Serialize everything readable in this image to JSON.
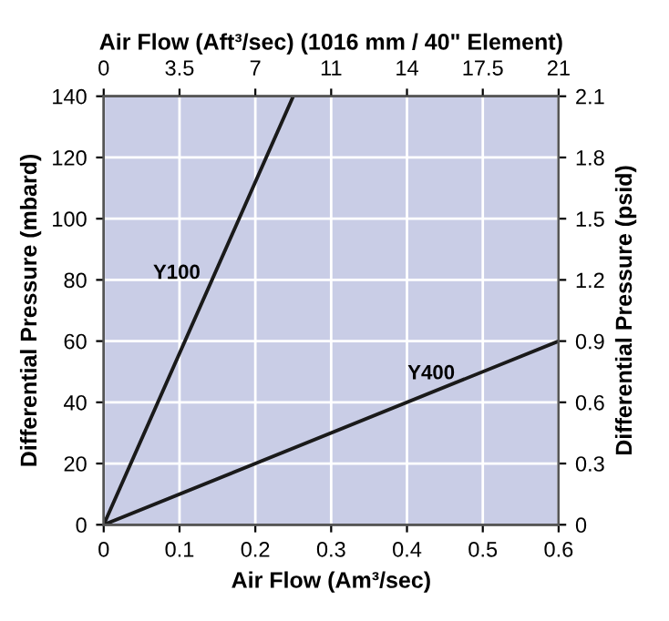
{
  "chart_data": {
    "type": "line",
    "xlabel": "Air Flow (Am³/sec)",
    "ylabel": "Differential Pressure (mbard)",
    "y2label": "Differential Pressure (psid)",
    "x2label": "Air Flow (Aft³/sec) (1016 mm / 40\" Element)",
    "series": [
      {
        "name": "Y100",
        "color": "#1a1a1a",
        "x": [
          0,
          0.25
        ],
        "values": [
          0,
          140
        ]
      },
      {
        "name": "Y400",
        "color": "#1a1a1a",
        "x": [
          0,
          0.6
        ],
        "values": [
          0,
          60
        ]
      }
    ],
    "xlim": [
      0,
      0.6
    ],
    "xticks": [
      0,
      0.1,
      0.2,
      0.3,
      0.4,
      0.5,
      0.6
    ],
    "ylim": [
      0,
      140
    ],
    "yticks": [
      0,
      20,
      40,
      60,
      80,
      100,
      120,
      140
    ],
    "y2lim": [
      0,
      2.1
    ],
    "y2ticks": [
      0,
      0.3,
      0.6,
      0.9,
      1.2,
      1.5,
      1.8,
      2.1
    ],
    "x2lim": [
      0,
      21
    ],
    "x2ticks": [
      0,
      3.5,
      7,
      {
        "value": 10.5,
        "label": "11"
      },
      14,
      17.5,
      21
    ],
    "grid": true,
    "line_style": "solid",
    "marker": "none"
  }
}
